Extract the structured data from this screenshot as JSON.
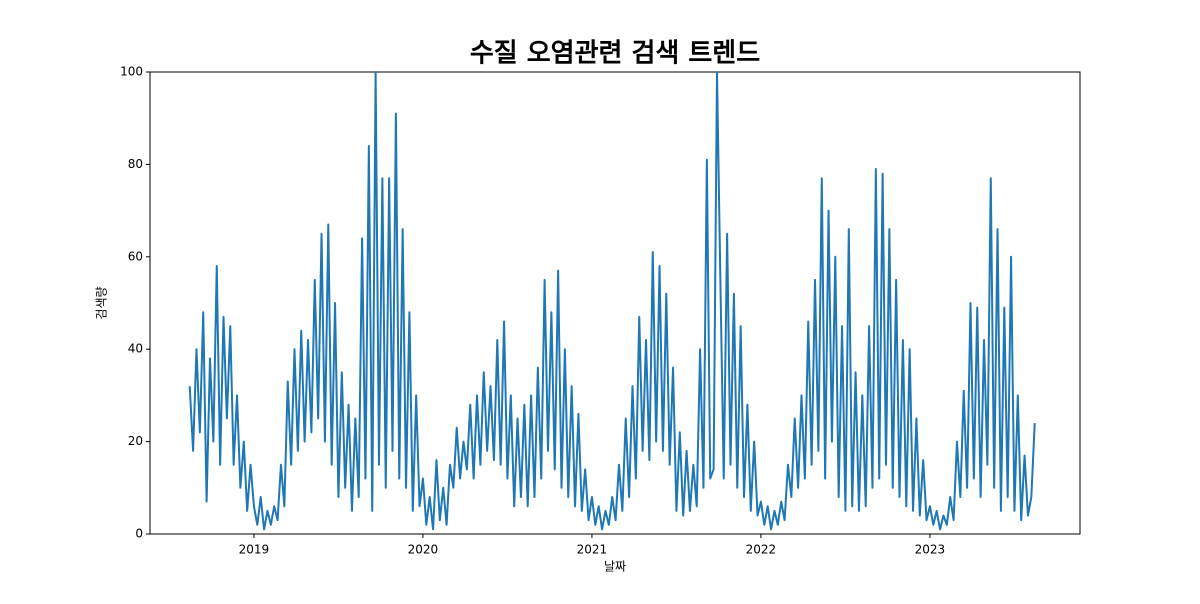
{
  "chart_data": {
    "type": "line",
    "title": "수질 오염관련 검색 트렌드",
    "xlabel": "날짜",
    "ylabel": "검색량",
    "color": "#1f77b4",
    "grid": false,
    "xlim": [
      2018.385,
      2023.888
    ],
    "xticks": [
      2019,
      2020,
      2021,
      2022,
      2023
    ],
    "ylim": [
      0,
      100
    ],
    "yticks": [
      0,
      20,
      40,
      60,
      80,
      100
    ],
    "x": [
      2018.62,
      2018.64,
      2018.66,
      2018.68,
      2018.7,
      2018.72,
      2018.74,
      2018.76,
      2018.78,
      2018.8,
      2018.82,
      2018.84,
      2018.86,
      2018.88,
      2018.9,
      2018.92,
      2018.94,
      2018.96,
      2018.98,
      2019.0,
      2019.02,
      2019.04,
      2019.06,
      2019.08,
      2019.1,
      2019.12,
      2019.14,
      2019.16,
      2019.18,
      2019.2,
      2019.22,
      2019.24,
      2019.26,
      2019.28,
      2019.3,
      2019.32,
      2019.34,
      2019.36,
      2019.38,
      2019.4,
      2019.42,
      2019.44,
      2019.46,
      2019.48,
      2019.5,
      2019.52,
      2019.54,
      2019.56,
      2019.58,
      2019.6,
      2019.62,
      2019.64,
      2019.66,
      2019.68,
      2019.7,
      2019.72,
      2019.74,
      2019.76,
      2019.78,
      2019.8,
      2019.82,
      2019.84,
      2019.86,
      2019.88,
      2019.9,
      2019.92,
      2019.94,
      2019.96,
      2019.98,
      2020.0,
      2020.02,
      2020.04,
      2020.06,
      2020.08,
      2020.1,
      2020.12,
      2020.14,
      2020.16,
      2020.18,
      2020.2,
      2020.22,
      2020.24,
      2020.26,
      2020.28,
      2020.3,
      2020.32,
      2020.34,
      2020.36,
      2020.38,
      2020.4,
      2020.42,
      2020.44,
      2020.46,
      2020.48,
      2020.5,
      2020.52,
      2020.54,
      2020.56,
      2020.58,
      2020.6,
      2020.62,
      2020.64,
      2020.66,
      2020.68,
      2020.7,
      2020.72,
      2020.74,
      2020.76,
      2020.78,
      2020.8,
      2020.82,
      2020.84,
      2020.86,
      2020.88,
      2020.9,
      2020.92,
      2020.94,
      2020.96,
      2020.98,
      2021.0,
      2021.02,
      2021.04,
      2021.06,
      2021.08,
      2021.1,
      2021.12,
      2021.14,
      2021.16,
      2021.18,
      2021.2,
      2021.22,
      2021.24,
      2021.26,
      2021.28,
      2021.3,
      2021.32,
      2021.34,
      2021.36,
      2021.38,
      2021.4,
      2021.42,
      2021.44,
      2021.46,
      2021.48,
      2021.5,
      2021.52,
      2021.54,
      2021.56,
      2021.58,
      2021.6,
      2021.62,
      2021.64,
      2021.66,
      2021.68,
      2021.7,
      2021.72,
      2021.74,
      2021.76,
      2021.78,
      2021.8,
      2021.82,
      2021.84,
      2021.86,
      2021.88,
      2021.9,
      2021.92,
      2021.94,
      2021.96,
      2021.98,
      2022.0,
      2022.02,
      2022.04,
      2022.06,
      2022.08,
      2022.1,
      2022.12,
      2022.14,
      2022.16,
      2022.18,
      2022.2,
      2022.22,
      2022.24,
      2022.26,
      2022.28,
      2022.3,
      2022.32,
      2022.34,
      2022.36,
      2022.38,
      2022.4,
      2022.42,
      2022.44,
      2022.46,
      2022.48,
      2022.5,
      2022.52,
      2022.54,
      2022.56,
      2022.58,
      2022.6,
      2022.62,
      2022.64,
      2022.66,
      2022.68,
      2022.7,
      2022.72,
      2022.74,
      2022.76,
      2022.78,
      2022.8,
      2022.82,
      2022.84,
      2022.86,
      2022.88,
      2022.9,
      2022.92,
      2022.94,
      2022.96,
      2022.98,
      2023.0,
      2023.02,
      2023.04,
      2023.06,
      2023.08,
      2023.1,
      2023.12,
      2023.14,
      2023.16,
      2023.18,
      2023.2,
      2023.22,
      2023.24,
      2023.26,
      2023.28,
      2023.3,
      2023.32,
      2023.34,
      2023.36,
      2023.38,
      2023.4,
      2023.42,
      2023.44,
      2023.46,
      2023.48,
      2023.5,
      2023.52,
      2023.54,
      2023.56,
      2023.58,
      2023.6,
      2023.62
    ],
    "values": [
      32,
      18,
      40,
      22,
      48,
      7,
      38,
      20,
      58,
      15,
      47,
      25,
      45,
      15,
      30,
      10,
      20,
      5,
      15,
      6,
      2,
      8,
      1,
      5,
      2,
      6,
      3,
      15,
      6,
      33,
      15,
      40,
      18,
      44,
      20,
      42,
      22,
      55,
      25,
      65,
      20,
      67,
      15,
      50,
      8,
      35,
      10,
      28,
      5,
      25,
      8,
      64,
      12,
      84,
      5,
      100,
      15,
      77,
      10,
      77,
      18,
      91,
      12,
      66,
      10,
      48,
      5,
      30,
      6,
      12,
      2,
      8,
      1,
      16,
      3,
      10,
      2,
      15,
      10,
      23,
      12,
      20,
      14,
      28,
      12,
      30,
      15,
      35,
      18,
      32,
      16,
      42,
      15,
      46,
      12,
      30,
      6,
      25,
      8,
      28,
      6,
      30,
      8,
      36,
      12,
      55,
      18,
      48,
      14,
      57,
      10,
      40,
      8,
      32,
      6,
      26,
      5,
      14,
      3,
      8,
      2,
      6,
      1,
      5,
      2,
      8,
      3,
      15,
      5,
      25,
      8,
      32,
      12,
      47,
      18,
      42,
      16,
      61,
      20,
      58,
      18,
      52,
      15,
      36,
      5,
      22,
      4,
      18,
      5,
      15,
      6,
      40,
      10,
      81,
      12,
      14,
      100,
      55,
      12,
      65,
      15,
      52,
      10,
      45,
      8,
      28,
      5,
      20,
      4,
      7,
      2,
      6,
      1,
      5,
      2,
      7,
      3,
      15,
      8,
      25,
      10,
      30,
      12,
      46,
      15,
      55,
      18,
      77,
      12,
      70,
      20,
      60,
      8,
      45,
      5,
      66,
      6,
      35,
      5,
      30,
      6,
      45,
      10,
      79,
      12,
      78,
      15,
      66,
      10,
      55,
      8,
      42,
      6,
      40,
      5,
      25,
      4,
      16,
      3,
      6,
      2,
      5,
      1,
      4,
      2,
      8,
      3,
      20,
      8,
      31,
      10,
      50,
      12,
      49,
      8,
      42,
      15,
      77,
      10,
      66,
      5,
      49,
      8,
      60,
      5,
      30,
      3,
      17,
      4,
      8,
      24
    ]
  }
}
